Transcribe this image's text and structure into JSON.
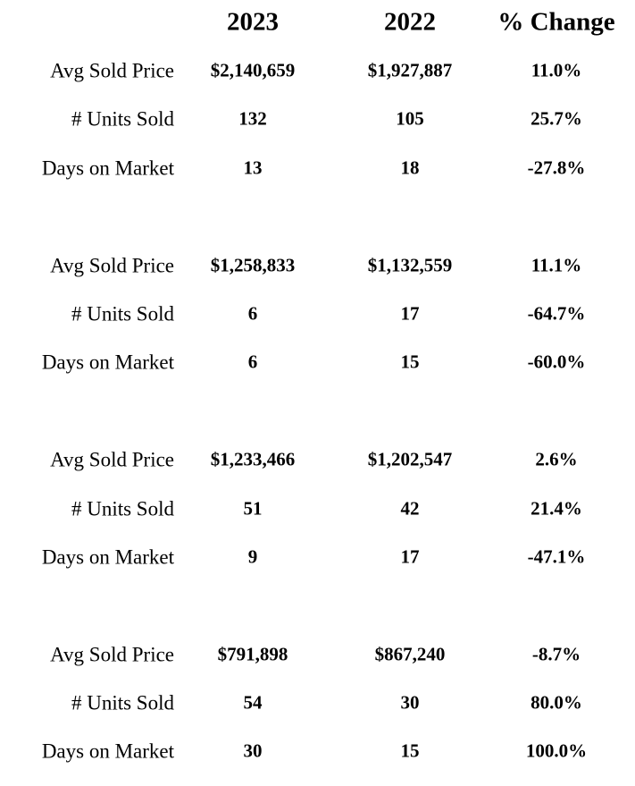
{
  "table": {
    "header": [
      "2023",
      "2022",
      "% Change"
    ],
    "groups": [
      [
        [
          "Avg Sold Price",
          "$2,140,659",
          "$1,927,887",
          "11.0%"
        ],
        [
          "# Units Sold",
          "132",
          "105",
          "25.7%"
        ],
        [
          "Days on Market",
          "13",
          "18",
          "-27.8%"
        ]
      ],
      [
        [
          "Avg Sold Price",
          "$1,258,833",
          "$1,132,559",
          "11.1%"
        ],
        [
          "# Units Sold",
          "6",
          "17",
          "-64.7%"
        ],
        [
          "Days on Market",
          "6",
          "15",
          "-60.0%"
        ]
      ],
      [
        [
          "Avg Sold Price",
          "$1,233,466",
          "$1,202,547",
          "2.6%"
        ],
        [
          "# Units Sold",
          "51",
          "42",
          "21.4%"
        ],
        [
          "Days on Market",
          "9",
          "17",
          "-47.1%"
        ]
      ],
      [
        [
          "Avg Sold Price",
          "$791,898",
          "$867,240",
          "-8.7%"
        ],
        [
          "# Units Sold",
          "54",
          "30",
          "80.0%"
        ],
        [
          "Days on Market",
          "30",
          "15",
          "100.0%"
        ]
      ]
    ]
  }
}
